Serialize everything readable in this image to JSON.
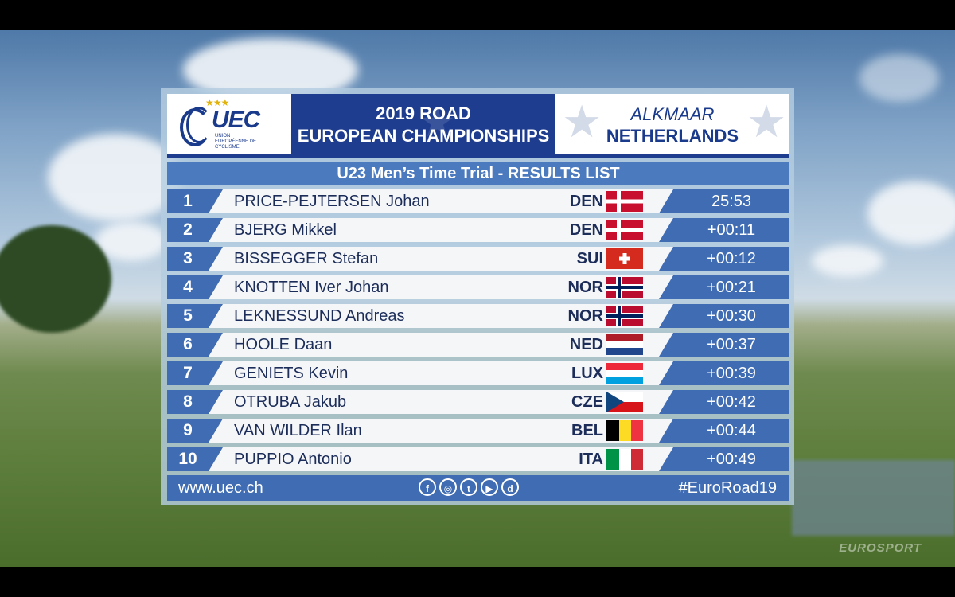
{
  "header": {
    "org_short": "UEC",
    "org_sub": "UNION EUROPÉENNE DE CYCLISME",
    "title_line1": "2019 ROAD",
    "title_line2": "EUROPEAN CHAMPIONSHIPS",
    "city": "ALKMAAR",
    "country": "NETHERLANDS"
  },
  "subheader": "U23  Men’s Time Trial - RESULTS LIST",
  "results": [
    {
      "pos": "1",
      "name": "PRICE-PEJTERSEN Johan",
      "nat": "DEN",
      "flag": "denmark-flag-icon",
      "time": "25:53"
    },
    {
      "pos": "2",
      "name": "BJERG Mikkel",
      "nat": "DEN",
      "flag": "denmark-flag-icon",
      "time": "+00:11"
    },
    {
      "pos": "3",
      "name": "BISSEGGER Stefan",
      "nat": "SUI",
      "flag": "switzerland-flag-icon",
      "time": "+00:12"
    },
    {
      "pos": "4",
      "name": "KNOTTEN Iver Johan",
      "nat": "NOR",
      "flag": "norway-flag-icon",
      "time": "+00:21"
    },
    {
      "pos": "5",
      "name": "LEKNESSUND Andreas",
      "nat": "NOR",
      "flag": "norway-flag-icon",
      "time": "+00:30"
    },
    {
      "pos": "6",
      "name": "HOOLE Daan",
      "nat": "NED",
      "flag": "netherlands-flag-icon",
      "time": "+00:37"
    },
    {
      "pos": "7",
      "name": "GENIETS Kevin",
      "nat": "LUX",
      "flag": "luxembourg-flag-icon",
      "time": "+00:39"
    },
    {
      "pos": "8",
      "name": "OTRUBA Jakub",
      "nat": "CZE",
      "flag": "czech-flag-icon",
      "time": "+00:42"
    },
    {
      "pos": "9",
      "name": "VAN WILDER Ilan",
      "nat": "BEL",
      "flag": "belgium-flag-icon",
      "time": "+00:44"
    },
    {
      "pos": "10",
      "name": "PUPPIO Antonio",
      "nat": "ITA",
      "flag": "italy-flag-icon",
      "time": "+00:49"
    }
  ],
  "footer": {
    "url": "www.uec.ch",
    "hashtag": "#EuroRoad19",
    "social_icons": [
      "facebook-icon",
      "instagram-icon",
      "twitter-icon",
      "youtube-icon",
      "dailymotion-icon"
    ]
  },
  "watermark": "EUROSPORT",
  "colors": {
    "navy": "#1f3d8f",
    "row_blue": "#3f6cb3",
    "subheader_blue": "#4c7abf",
    "row_bg": "#f5f6f8",
    "text_dark": "#1c2d5a"
  }
}
